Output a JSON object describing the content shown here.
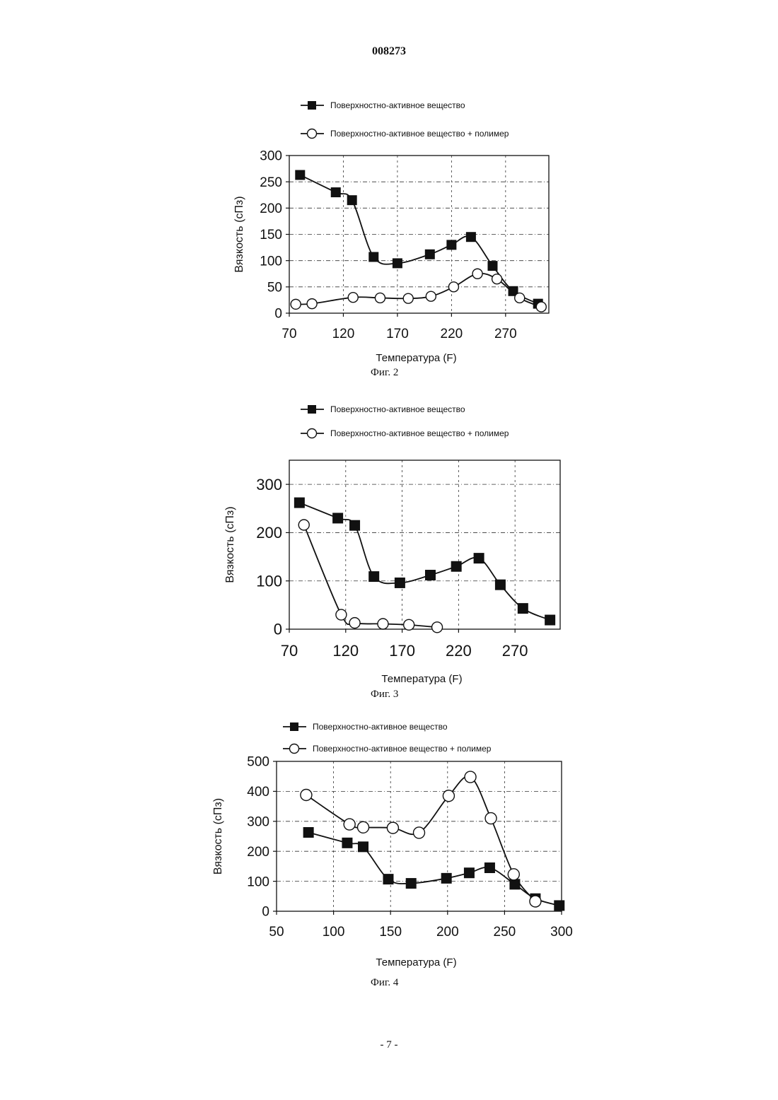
{
  "document": {
    "number": "008273",
    "page": "- 7 -"
  },
  "figures": [
    {
      "caption": "Фиг. 2",
      "legend": [
        "Поверхностно-активное вещество",
        "Поверхностно-активное вещество + полимер"
      ]
    },
    {
      "caption": "Фиг. 3",
      "legend": [
        "Поверхностно-активное вещество",
        "Поверхностно-активное вещество + полимер"
      ]
    },
    {
      "caption": "Фиг. 4",
      "legend": [
        "Поверхностно-активное вещество",
        "Поверхностно-активное вещество + полимер"
      ]
    }
  ],
  "chart_data": [
    {
      "type": "line",
      "title": "",
      "xlabel": "Температура (F)",
      "ylabel": "Вязкость (сПз)",
      "xlim": [
        70,
        310
      ],
      "ylim": [
        0,
        300
      ],
      "xticks": [
        70,
        120,
        170,
        220,
        270
      ],
      "yticks": [
        0,
        50,
        100,
        150,
        200,
        250,
        300
      ],
      "grid": true,
      "legend_position": "top",
      "series": [
        {
          "name": "Поверхностно-активное вещество",
          "marker": "filled-square",
          "points": [
            [
              80,
              263
            ],
            [
              113,
              230
            ],
            [
              128,
              215
            ],
            [
              148,
              107
            ],
            [
              170,
              95
            ],
            [
              200,
              112
            ],
            [
              220,
              130
            ],
            [
              238,
              145
            ],
            [
              258,
              90
            ],
            [
              277,
              42
            ],
            [
              300,
              18
            ]
          ]
        },
        {
          "name": "Поверхностно-активное вещество + полимер",
          "marker": "open-circle",
          "points": [
            [
              76,
              17
            ],
            [
              91,
              18
            ],
            [
              129,
              30
            ],
            [
              154,
              29
            ],
            [
              180,
              28
            ],
            [
              201,
              32
            ],
            [
              222,
              50
            ],
            [
              244,
              75
            ],
            [
              262,
              65
            ],
            [
              283,
              29
            ],
            [
              303,
              12
            ]
          ]
        }
      ]
    },
    {
      "type": "line",
      "title": "",
      "xlabel": "Температура (F)",
      "ylabel": "Вязкость (сПз)",
      "xlim": [
        70,
        310
      ],
      "ylim": [
        0,
        350
      ],
      "xticks": [
        70,
        120,
        170,
        220,
        270
      ],
      "yticks": [
        0,
        100,
        200,
        300
      ],
      "grid": true,
      "legend_position": "top",
      "series": [
        {
          "name": "Поверхностно-активное вещество",
          "marker": "filled-square",
          "points": [
            [
              79,
              262
            ],
            [
              113,
              230
            ],
            [
              128,
              215
            ],
            [
              145,
              109
            ],
            [
              168,
              96
            ],
            [
              195,
              112
            ],
            [
              218,
              130
            ],
            [
              238,
              147
            ],
            [
              257,
              92
            ],
            [
              277,
              43
            ],
            [
              301,
              19
            ]
          ]
        },
        {
          "name": "Поверхностно-активное вещество + полимер",
          "marker": "open-circle",
          "points": [
            [
              83,
              216
            ],
            [
              116,
              30
            ],
            [
              128,
              13
            ],
            [
              153,
              11
            ],
            [
              176,
              9
            ],
            [
              201,
              4
            ]
          ]
        }
      ]
    },
    {
      "type": "line",
      "title": "",
      "xlabel": "Температура (F)",
      "ylabel": "Вязкость (сПз)",
      "xlim": [
        50,
        300
      ],
      "ylim": [
        0,
        500
      ],
      "xticks": [
        50,
        100,
        150,
        200,
        250,
        300
      ],
      "yticks": [
        0,
        100,
        200,
        300,
        400,
        500
      ],
      "grid": true,
      "legend_position": "top",
      "series": [
        {
          "name": "Поверхностно-активное вещество",
          "marker": "filled-square",
          "points": [
            [
              78,
              263
            ],
            [
              112,
              228
            ],
            [
              126,
              215
            ],
            [
              148,
              107
            ],
            [
              168,
              93
            ],
            [
              199,
              110
            ],
            [
              219,
              128
            ],
            [
              237,
              145
            ],
            [
              259,
              90
            ],
            [
              277,
              42
            ],
            [
              298,
              19
            ]
          ]
        },
        {
          "name": "Поверхностно-активное вещество + полимер",
          "marker": "open-circle",
          "points": [
            [
              76,
              388
            ],
            [
              114,
              290
            ],
            [
              126,
              280
            ],
            [
              152,
              278
            ],
            [
              175,
              262
            ],
            [
              201,
              385
            ],
            [
              220,
              448
            ],
            [
              238,
              310
            ],
            [
              258,
              123
            ],
            [
              277,
              33
            ]
          ]
        }
      ]
    }
  ]
}
